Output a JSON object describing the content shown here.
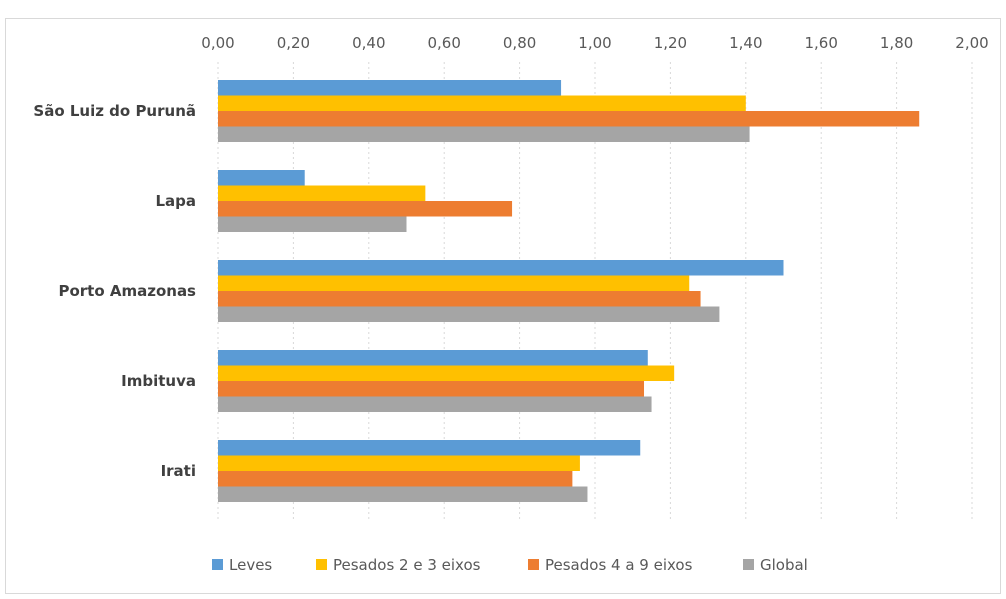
{
  "chart_data": {
    "type": "bar",
    "orientation": "horizontal",
    "title": "",
    "xlabel": "",
    "ylabel": "",
    "xlim": [
      0,
      2
    ],
    "x_ticks": [
      "0,00",
      "0,20",
      "0,40",
      "0,60",
      "0,80",
      "1,00",
      "1,20",
      "1,40",
      "1,60",
      "1,80",
      "2,00"
    ],
    "x_tick_values": [
      0,
      0.2,
      0.4,
      0.6,
      0.8,
      1.0,
      1.2,
      1.4,
      1.6,
      1.8,
      2.0
    ],
    "x_axis_position": "top",
    "grid": true,
    "legend_position": "bottom",
    "categories": [
      "São Luiz do Purunã",
      "Lapa",
      "Porto Amazonas",
      "Imbituva",
      "Irati"
    ],
    "series": [
      {
        "name": "Leves",
        "color": "#5b9bd5",
        "values": [
          0.91,
          0.23,
          1.5,
          1.14,
          1.12
        ]
      },
      {
        "name": "Pesados 2 e 3 eixos",
        "color": "#ffc000",
        "values": [
          1.4,
          0.55,
          1.25,
          1.21,
          0.96
        ]
      },
      {
        "name": "Pesados 4 a 9 eixos",
        "color": "#ed7d31",
        "values": [
          1.86,
          0.78,
          1.28,
          1.13,
          0.94
        ]
      },
      {
        "name": "Global",
        "color": "#a5a5a5",
        "values": [
          1.41,
          0.5,
          1.33,
          1.15,
          0.98
        ]
      }
    ]
  }
}
